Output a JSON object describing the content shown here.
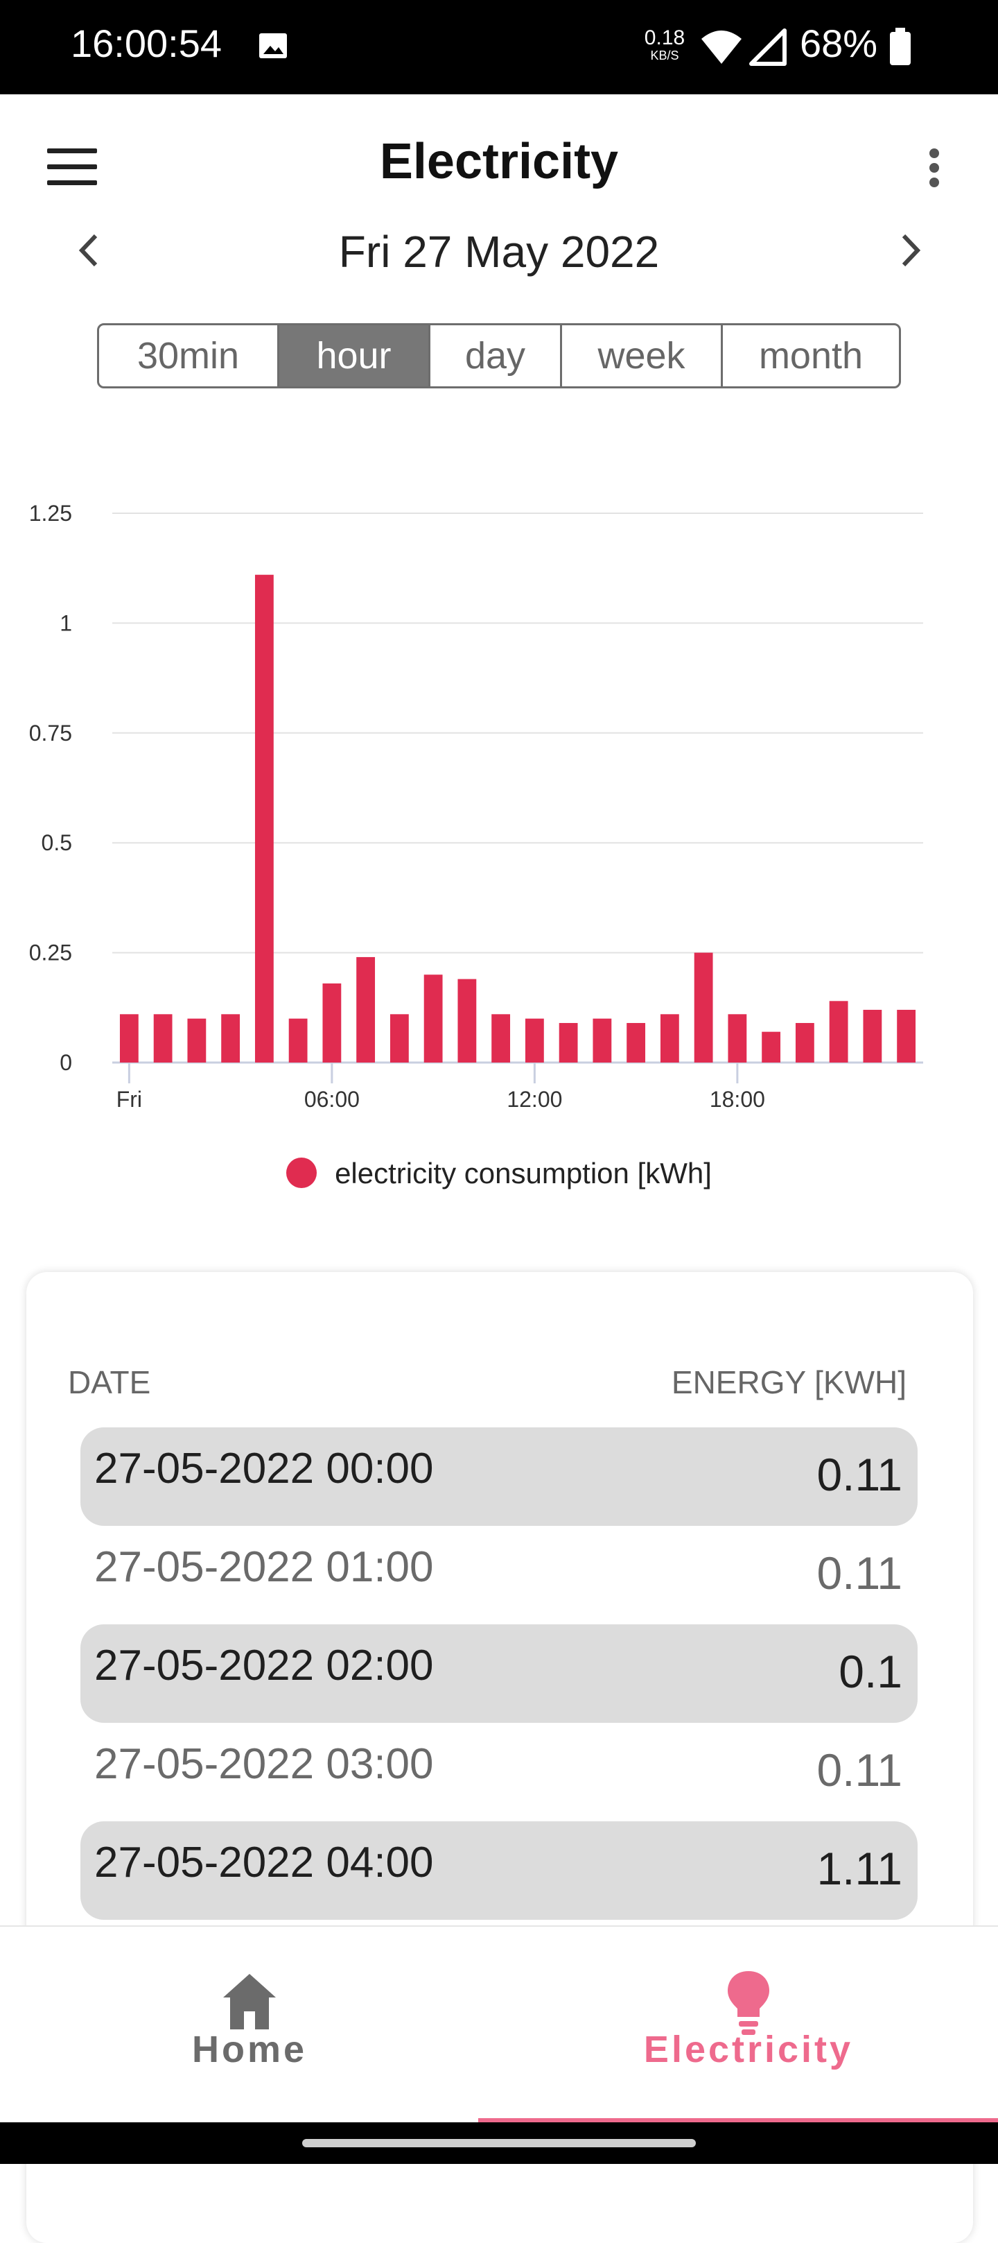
{
  "status_bar": {
    "time": "16:00:54",
    "speed_value": "0.18",
    "speed_unit": "KB/S",
    "battery": "68%",
    "icons": [
      "image-icon",
      "wifi-icon",
      "signal-icon",
      "battery-icon"
    ]
  },
  "app_bar": {
    "title": "Electricity",
    "icons": [
      "menu-icon",
      "more-vert-icon"
    ]
  },
  "date_nav": {
    "label": "Fri 27 May 2022",
    "icons": [
      "chevron-left-icon",
      "chevron-right-icon"
    ]
  },
  "range_tabs": [
    {
      "label": "30min",
      "active": false
    },
    {
      "label": "hour",
      "active": true
    },
    {
      "label": "day",
      "active": false
    },
    {
      "label": "week",
      "active": false
    },
    {
      "label": "month",
      "active": false
    }
  ],
  "chart_data": {
    "type": "bar",
    "x": [
      0,
      1,
      2,
      3,
      4,
      5,
      6,
      7,
      8,
      9,
      10,
      11,
      12,
      13,
      14,
      15,
      16,
      17,
      18,
      19,
      20,
      21,
      22,
      23
    ],
    "x_tick_labels": [
      {
        "at": 0,
        "label": "Fri"
      },
      {
        "at": 6,
        "label": "06:00"
      },
      {
        "at": 12,
        "label": "12:00"
      },
      {
        "at": 18,
        "label": "18:00"
      }
    ],
    "series": [
      {
        "name": "electricity consumption [kWh]",
        "color": "#e02c50",
        "values": [
          0.11,
          0.11,
          0.1,
          0.11,
          1.11,
          0.1,
          0.18,
          0.24,
          0.11,
          0.2,
          0.19,
          0.11,
          0.1,
          0.09,
          0.1,
          0.09,
          0.11,
          0.25,
          0.11,
          0.07,
          0.09,
          0.14,
          0.12,
          0.12
        ]
      }
    ],
    "y_ticks": [
      "0",
      "0.25",
      "0.5",
      "0.75",
      "1",
      "1.25"
    ],
    "ylim": [
      0,
      1.25
    ],
    "grid": true,
    "legend_position": "bottom-center"
  },
  "legend": {
    "label": "electricity consumption [kWh]",
    "color": "#e02c50"
  },
  "table": {
    "headers": {
      "date": "DATE",
      "energy": "ENERGY [KWH]"
    },
    "rows": [
      {
        "date": "27-05-2022 00:00",
        "energy": "0.11",
        "highlight": true
      },
      {
        "date": "27-05-2022 01:00",
        "energy": "0.11",
        "highlight": false
      },
      {
        "date": "27-05-2022 02:00",
        "energy": "0.1",
        "highlight": true
      },
      {
        "date": "27-05-2022 03:00",
        "energy": "0.11",
        "highlight": false
      },
      {
        "date": "27-05-2022 04:00",
        "energy": "1.11",
        "highlight": true
      }
    ]
  },
  "bottom_nav": {
    "items": [
      {
        "label": "Home",
        "icon": "home-icon",
        "active": false
      },
      {
        "label": "Electricity",
        "icon": "lightbulb-icon",
        "active": true
      }
    ],
    "active_color": "#ee6a8d"
  }
}
